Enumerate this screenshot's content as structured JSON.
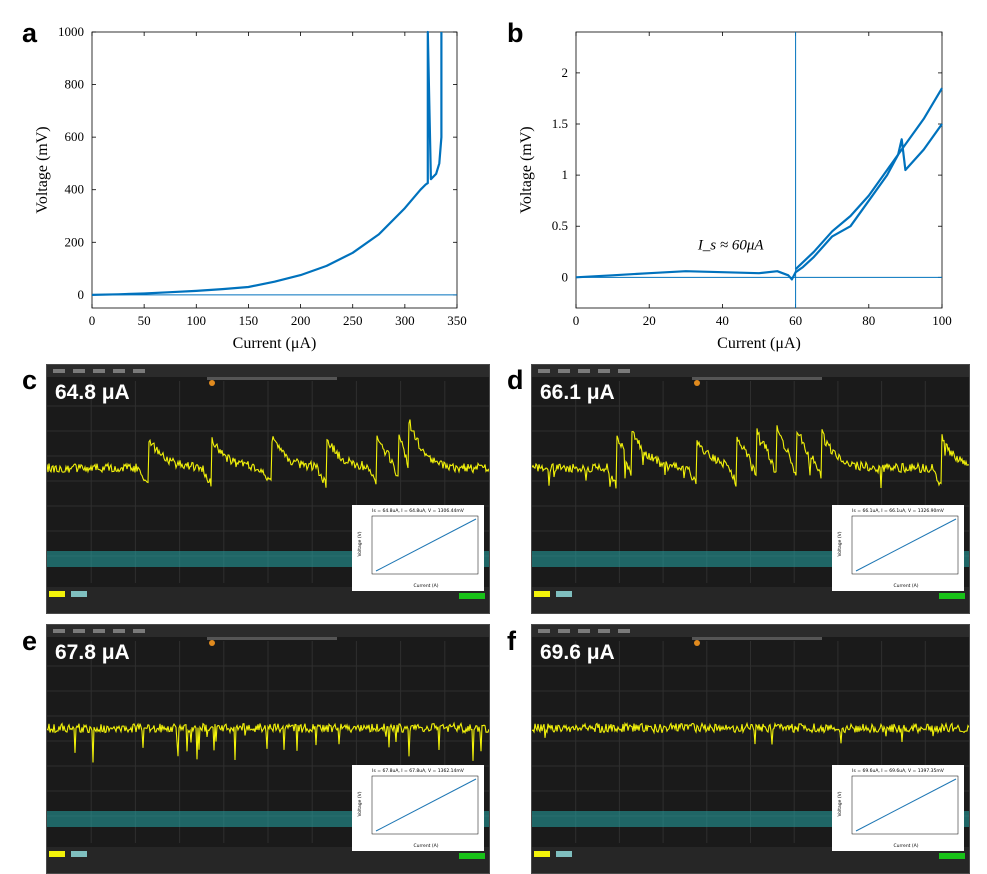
{
  "panel_letters": {
    "a": "a",
    "b": "b",
    "c": "c",
    "d": "d",
    "e": "e",
    "f": "f"
  },
  "colors": {
    "trace": "#0072bd",
    "scope_signal": "#f2f20a",
    "scope_channel2": "#25a5a5",
    "scope_bg": "#1a1a1a"
  },
  "chart_data": [
    {
      "panel": "a",
      "type": "line",
      "xlabel": "Current (μA)",
      "ylabel": "Voltage (mV)",
      "xlim": [
        0,
        350
      ],
      "ylim": [
        -50,
        1000
      ],
      "xticks": [
        0,
        50,
        100,
        150,
        200,
        250,
        300,
        350
      ],
      "yticks": [
        0,
        200,
        400,
        600,
        800,
        1000
      ],
      "series": [
        {
          "x": [
            0,
            25,
            50,
            75,
            100,
            125,
            150,
            175,
            200,
            225,
            250,
            275,
            300,
            315,
            320,
            322,
            322,
            325,
            330,
            333,
            335,
            335
          ],
          "y": [
            0,
            2,
            5,
            10,
            15,
            22,
            30,
            50,
            75,
            110,
            160,
            230,
            330,
            400,
            420,
            425,
            1000,
            440,
            460,
            500,
            600,
            1000
          ]
        }
      ],
      "reference_line": {
        "y": 0
      }
    },
    {
      "panel": "b",
      "type": "line",
      "xlabel": "Current (μA)",
      "ylabel": "Voltage (mV)",
      "xlim": [
        0,
        100
      ],
      "ylim": [
        -0.3,
        2.4
      ],
      "xticks": [
        0,
        20,
        40,
        60,
        80,
        100
      ],
      "yticks": [
        0,
        0.5,
        1,
        1.5,
        2
      ],
      "series": [
        {
          "x": [
            0,
            10,
            20,
            30,
            40,
            50,
            55,
            58,
            59,
            60,
            62,
            65,
            70,
            75,
            80,
            85,
            88,
            89,
            90,
            95,
            100
          ],
          "y": [
            0,
            0.02,
            0.04,
            0.06,
            0.05,
            0.04,
            0.06,
            0.02,
            -0.02,
            0.05,
            0.1,
            0.2,
            0.4,
            0.5,
            0.75,
            1.0,
            1.2,
            1.35,
            1.05,
            1.25,
            1.5
          ]
        },
        {
          "x": [
            60,
            65,
            70,
            75,
            80,
            85,
            90,
            95,
            100
          ],
          "y": [
            0.08,
            0.25,
            0.45,
            0.6,
            0.8,
            1.05,
            1.3,
            1.55,
            1.85
          ]
        }
      ],
      "reference_lines": {
        "x": 60,
        "y": 0
      },
      "annotation": "I_s ≈ 60μA"
    }
  ],
  "scopes": {
    "c": {
      "label": "64.8 μA",
      "inset_title": "Is = 64.8uA, I = 64.8uA, V = 1306.44mV"
    },
    "d": {
      "label": "66.1 μA",
      "inset_title": "Is = 66.1uA, I = 66.1uA, V = 1326.90mV"
    },
    "e": {
      "label": "67.8 μA",
      "inset_title": "Is = 67.8uA, I = 67.8uA, V = 1362.14mV"
    },
    "f": {
      "label": "69.6 μA",
      "inset_title": "Is = 69.6uA, I = 69.6uA, V = 1397.35mV"
    }
  },
  "inset": {
    "xlabel": "Current (A)",
    "ylabel": "Voltage (V)"
  }
}
